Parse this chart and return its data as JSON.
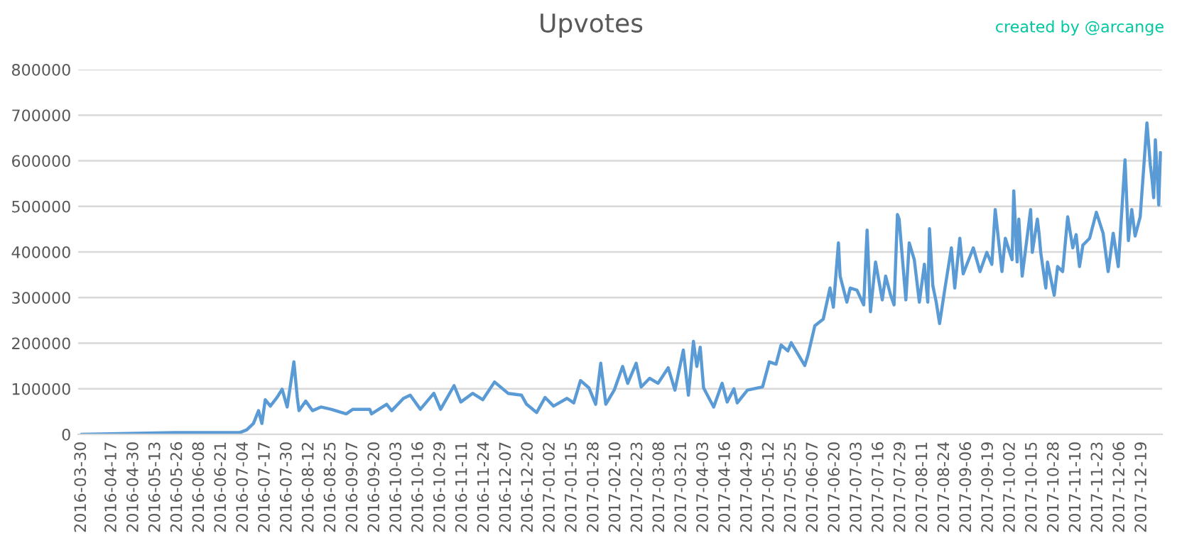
{
  "chart_data": {
    "type": "line",
    "title": "Upvotes",
    "annotations": [
      "created by @arcange"
    ],
    "x": [
      "2016-03-30",
      "2016-05-24",
      "2016-07-02",
      "2016-07-06",
      "2016-07-10",
      "2016-07-13",
      "2016-07-15",
      "2016-07-17",
      "2016-07-20",
      "2016-07-24",
      "2016-07-27",
      "2016-07-30",
      "2016-08-03",
      "2016-08-05",
      "2016-08-06",
      "2016-08-10",
      "2016-08-14",
      "2016-08-19",
      "2016-08-25",
      "2016-09-03",
      "2016-09-07",
      "2016-09-17",
      "2016-09-18",
      "2016-09-27",
      "2016-09-30",
      "2016-10-07",
      "2016-10-11",
      "2016-10-17",
      "2016-10-25",
      "2016-10-29",
      "2016-11-06",
      "2016-11-10",
      "2016-11-17",
      "2016-11-23",
      "2016-11-30",
      "2016-12-08",
      "2016-12-16",
      "2016-12-19",
      "2016-12-25",
      "2016-12-30",
      "2017-01-04",
      "2017-01-12",
      "2017-01-16",
      "2017-01-20",
      "2017-01-25",
      "2017-01-29",
      "2017-02-01",
      "2017-02-04",
      "2017-02-09",
      "2017-02-14",
      "2017-02-17",
      "2017-02-22",
      "2017-02-25",
      "2017-03-02",
      "2017-03-07",
      "2017-03-13",
      "2017-03-17",
      "2017-03-22",
      "2017-03-25",
      "2017-03-28",
      "2017-03-30",
      "2017-04-01",
      "2017-04-03",
      "2017-04-09",
      "2017-04-14",
      "2017-04-17",
      "2017-04-21",
      "2017-04-23",
      "2017-04-29",
      "2017-05-08",
      "2017-05-12",
      "2017-05-16",
      "2017-05-19",
      "2017-05-23",
      "2017-05-25",
      "2017-05-30",
      "2017-06-02",
      "2017-06-04",
      "2017-06-08",
      "2017-06-13",
      "2017-06-17",
      "2017-06-19",
      "2017-06-22",
      "2017-06-23",
      "2017-06-27",
      "2017-06-29",
      "2017-07-03",
      "2017-07-07",
      "2017-07-09",
      "2017-07-11",
      "2017-07-14",
      "2017-07-18",
      "2017-07-20",
      "2017-07-23",
      "2017-07-25",
      "2017-07-27",
      "2017-07-28",
      "2017-08-01",
      "2017-08-03",
      "2017-08-06",
      "2017-08-09",
      "2017-08-12",
      "2017-08-14",
      "2017-08-15",
      "2017-08-17",
      "2017-08-19",
      "2017-08-21",
      "2017-08-24",
      "2017-08-28",
      "2017-08-30",
      "2017-09-02",
      "2017-09-04",
      "2017-09-10",
      "2017-09-14",
      "2017-09-18",
      "2017-09-21",
      "2017-09-23",
      "2017-09-25",
      "2017-09-27",
      "2017-09-29",
      "2017-10-03",
      "2017-10-04",
      "2017-10-06",
      "2017-10-07",
      "2017-10-09",
      "2017-10-14",
      "2017-10-15",
      "2017-10-18",
      "2017-10-19",
      "2017-10-20",
      "2017-10-23",
      "2017-10-24",
      "2017-10-28",
      "2017-10-30",
      "2017-11-02",
      "2017-11-05",
      "2017-11-08",
      "2017-11-10",
      "2017-11-12",
      "2017-11-14",
      "2017-11-18",
      "2017-11-22",
      "2017-11-26",
      "2017-11-29",
      "2017-12-02",
      "2017-12-05",
      "2017-12-09",
      "2017-12-11",
      "2017-12-13",
      "2017-12-15",
      "2017-12-18",
      "2017-12-22",
      "2017-12-24",
      "2017-12-25",
      "2017-12-26",
      "2017-12-27",
      "2017-12-29",
      "2017-12-30"
    ],
    "series": [
      {
        "color": "#5b9bd5",
        "values": [
          0,
          4000,
          4000,
          10000,
          24000,
          52000,
          24000,
          76000,
          62000,
          81000,
          99000,
          60000,
          159000,
          81000,
          52000,
          73000,
          52000,
          60000,
          55000,
          45000,
          55000,
          55000,
          45000,
          66000,
          52000,
          79000,
          86000,
          55000,
          90000,
          55000,
          107000,
          71000,
          90000,
          76000,
          115000,
          90000,
          86000,
          66000,
          48000,
          81000,
          62000,
          79000,
          69000,
          118000,
          102000,
          66000,
          156000,
          66000,
          97000,
          149000,
          112000,
          156000,
          104000,
          123000,
          112000,
          146000,
          97000,
          185000,
          86000,
          204000,
          149000,
          191000,
          102000,
          60000,
          112000,
          71000,
          100000,
          69000,
          97000,
          104000,
          159000,
          154000,
          196000,
          183000,
          201000,
          170000,
          151000,
          175000,
          238000,
          253000,
          321000,
          279000,
          420000,
          347000,
          290000,
          321000,
          316000,
          284000,
          448000,
          269000,
          378000,
          295000,
          347000,
          305000,
          284000,
          482000,
          472000,
          295000,
          420000,
          383000,
          290000,
          373000,
          290000,
          451000,
          326000,
          290000,
          243000,
          316000,
          409000,
          321000,
          430000,
          352000,
          409000,
          357000,
          399000,
          373000,
          493000,
          425000,
          357000,
          430000,
          383000,
          534000,
          378000,
          472000,
          347000,
          493000,
          399000,
          472000,
          441000,
          399000,
          321000,
          378000,
          305000,
          368000,
          357000,
          477000,
          409000,
          438000,
          368000,
          415000,
          430000,
          487000,
          441000,
          357000,
          441000,
          368000,
          602000,
          425000,
          493000,
          435000,
          477000,
          683000,
          591000,
          560000,
          519000,
          646000,
          503000,
          618000
        ]
      }
    ],
    "xlim": [
      "2016-03-28",
      "2017-12-31"
    ],
    "xticks": [
      "2016-03-30",
      "2016-04-17",
      "2016-04-30",
      "2016-05-13",
      "2016-05-26",
      "2016-06-08",
      "2016-06-21",
      "2016-07-04",
      "2016-07-17",
      "2016-07-30",
      "2016-08-12",
      "2016-08-25",
      "2016-09-07",
      "2016-09-20",
      "2016-10-03",
      "2016-10-16",
      "2016-10-29",
      "2016-11-11",
      "2016-11-24",
      "2016-12-07",
      "2016-12-20",
      "2017-01-02",
      "2017-01-15",
      "2017-01-28",
      "2017-02-10",
      "2017-02-23",
      "2017-03-08",
      "2017-03-21",
      "2017-04-03",
      "2017-04-16",
      "2017-04-29",
      "2017-05-12",
      "2017-05-25",
      "2017-06-07",
      "2017-06-20",
      "2017-07-03",
      "2017-07-16",
      "2017-07-29",
      "2017-08-11",
      "2017-08-24",
      "2017-09-06",
      "2017-09-19",
      "2017-10-02",
      "2017-10-15",
      "2017-10-28",
      "2017-11-10",
      "2017-11-23",
      "2017-12-06",
      "2017-12-19"
    ],
    "ylim": [
      0,
      800000
    ],
    "yticks": [
      0,
      100000,
      200000,
      300000,
      400000,
      500000,
      600000,
      700000,
      800000
    ],
    "grid": "y",
    "legend": false,
    "marker": "none",
    "line_style": "solid"
  }
}
